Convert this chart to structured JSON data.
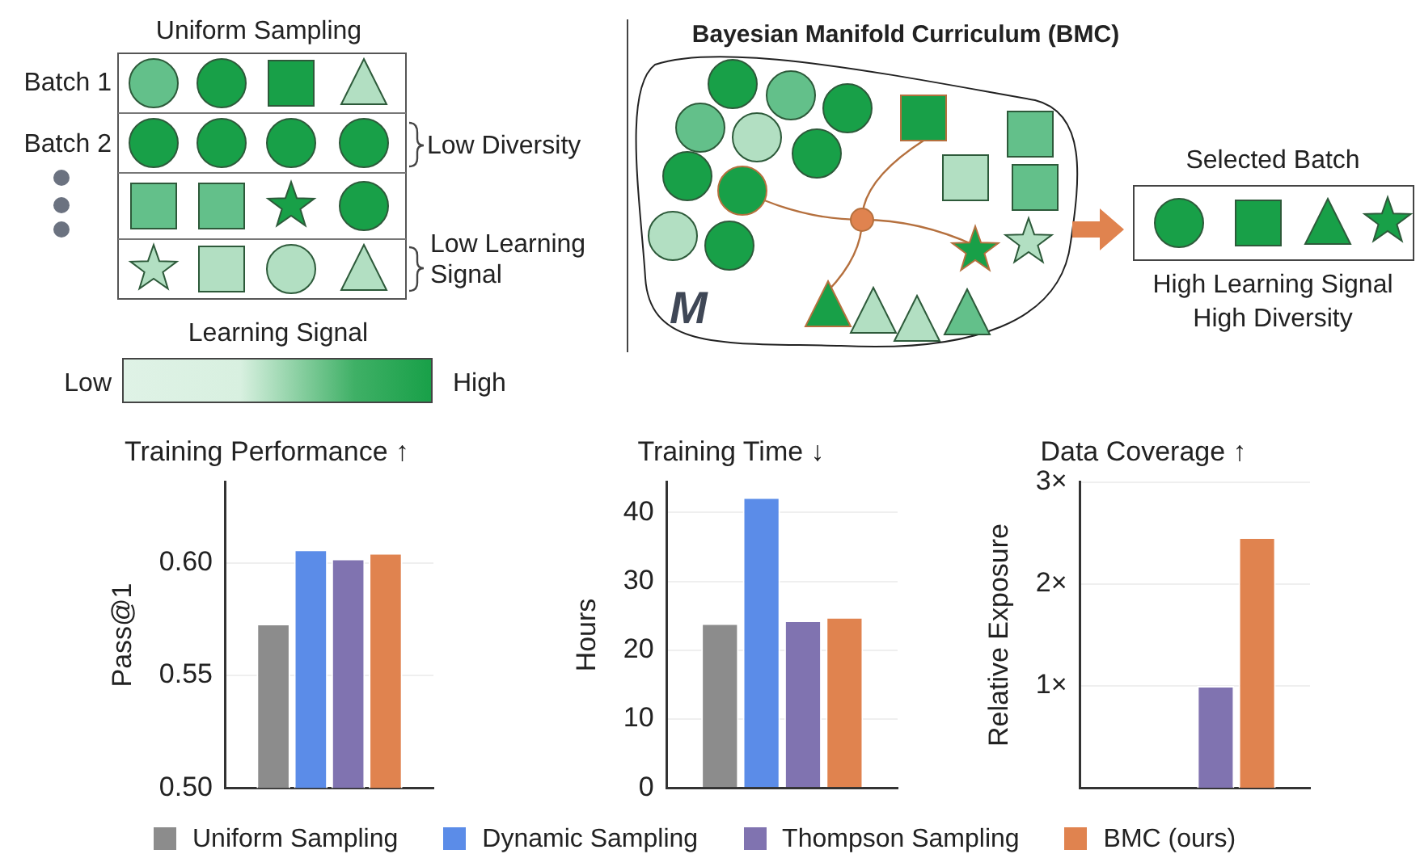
{
  "chart_data": [
    {
      "type": "other",
      "annotations": [
        "Uniform Sampling",
        "Batch 1",
        "Batch 2",
        "Low Diversity",
        "Low Learning Signal",
        "Learning Signal",
        "Low",
        "High",
        "Bayesian Manifold Curriculum (BMC)",
        "M",
        "Selected Batch",
        "High Learning Signal",
        "High Diversity"
      ]
    },
    {
      "type": "bar",
      "title": "Training Performance ↑",
      "ylabel": "Pass@1",
      "categories": [
        null
      ],
      "ylim": [
        0.5,
        0.636
      ],
      "yticks": [
        {
          "value": 0.5,
          "label": "0.50"
        },
        0.55,
        {
          "value": 0.6,
          "label": "0.60"
        }
      ],
      "grid": "y",
      "legend": "bottom",
      "series": [
        {
          "name": "Uniform Sampling",
          "color": "#8c8c8c",
          "values": [
            0.573
          ]
        },
        {
          "name": "Dynamic Sampling",
          "color": "#5b8ce8",
          "values": [
            0.606
          ]
        },
        {
          "name": "Thompson Sampling",
          "color": "#8073b0",
          "values": [
            0.602
          ]
        },
        {
          "name": "BMC (ours)",
          "color": "#e0834f",
          "values": [
            0.6045
          ]
        }
      ]
    },
    {
      "type": "bar",
      "title": "Training Time ↓",
      "ylabel": "Hours",
      "categories": [
        null
      ],
      "ylim": [
        0,
        44.4
      ],
      "yticks": [
        0,
        10,
        20,
        30,
        40
      ],
      "grid": "y",
      "series": [
        {
          "color": "#8c8c8c",
          "values": [
            23.9
          ]
        },
        {
          "color": "#5b8ce8",
          "values": [
            42.2
          ]
        },
        {
          "color": "#8073b0",
          "values": [
            24.3
          ]
        },
        {
          "color": "#e0834f",
          "values": [
            24.8
          ]
        }
      ]
    },
    {
      "type": "bar",
      "title": "Data Coverage ↑",
      "ylabel": "Relative Exposure",
      "categories": [
        null
      ],
      "ylim": [
        0,
        3
      ],
      "yticks": [
        {
          "value": 1,
          "label": "1×"
        },
        {
          "value": 2,
          "label": "2×"
        },
        {
          "value": 3,
          "label": "3×"
        }
      ],
      "grid": "y",
      "series": [
        {
          "color": "#8c8c8c",
          "values": [
            null
          ]
        },
        {
          "color": "#5b8ce8",
          "values": [
            null
          ]
        },
        {
          "color": "#8073b0",
          "values": [
            1.0
          ]
        },
        {
          "color": "#e0834f",
          "values": [
            2.46
          ]
        }
      ]
    }
  ]
}
